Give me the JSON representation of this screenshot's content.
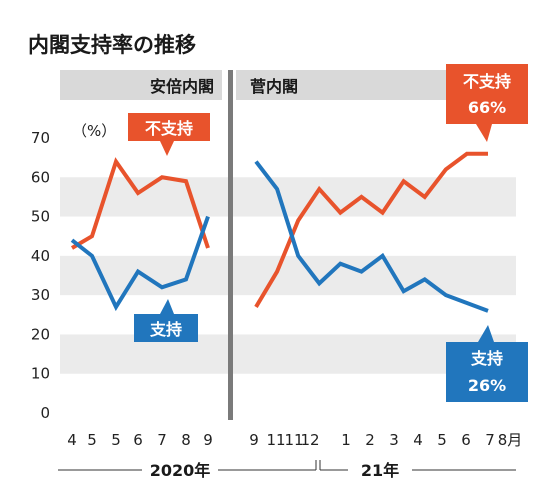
{
  "chart_data": {
    "type": "line",
    "title": "内閣支持率の推移",
    "unit_label": "（%）",
    "ylim": [
      0,
      70
    ],
    "yticks": [
      0,
      10,
      20,
      30,
      40,
      50,
      60,
      70
    ],
    "panels": [
      {
        "name": "安倍内閣",
        "categories": [
          "4",
          "5",
          "5",
          "6",
          "7",
          "8",
          "9"
        ],
        "year_label": "2020年",
        "series": [
          {
            "name": "不支持",
            "color": "#e8532c",
            "values": [
              42,
              45,
              64,
              56,
              60,
              59,
              42
            ]
          },
          {
            "name": "支持",
            "color": "#2176bd",
            "values": [
              44,
              40,
              27,
              36,
              32,
              34,
              50
            ]
          }
        ]
      },
      {
        "name": "菅内閣",
        "categories": [
          "9",
          "11",
          "11",
          "12",
          "1",
          "2",
          "3",
          "4",
          "5",
          "6",
          "7",
          "8月"
        ],
        "year_label": "21年",
        "series": [
          {
            "name": "不支持",
            "color": "#e8532c",
            "values": [
              27,
              36,
              49,
              57,
              51,
              55,
              51,
              59,
              55,
              62,
              66,
              66
            ]
          },
          {
            "name": "支持",
            "color": "#2176bd",
            "values": [
              64,
              57,
              40,
              33,
              38,
              36,
              40,
              31,
              34,
              30,
              28,
              26
            ]
          }
        ]
      }
    ],
    "callouts": {
      "abe_disapprove": "不支持",
      "abe_approve": "支持",
      "suga_disapprove": "不支持",
      "suga_disapprove_value": "66%",
      "suga_approve": "支持",
      "suga_approve_value": "26%"
    }
  }
}
